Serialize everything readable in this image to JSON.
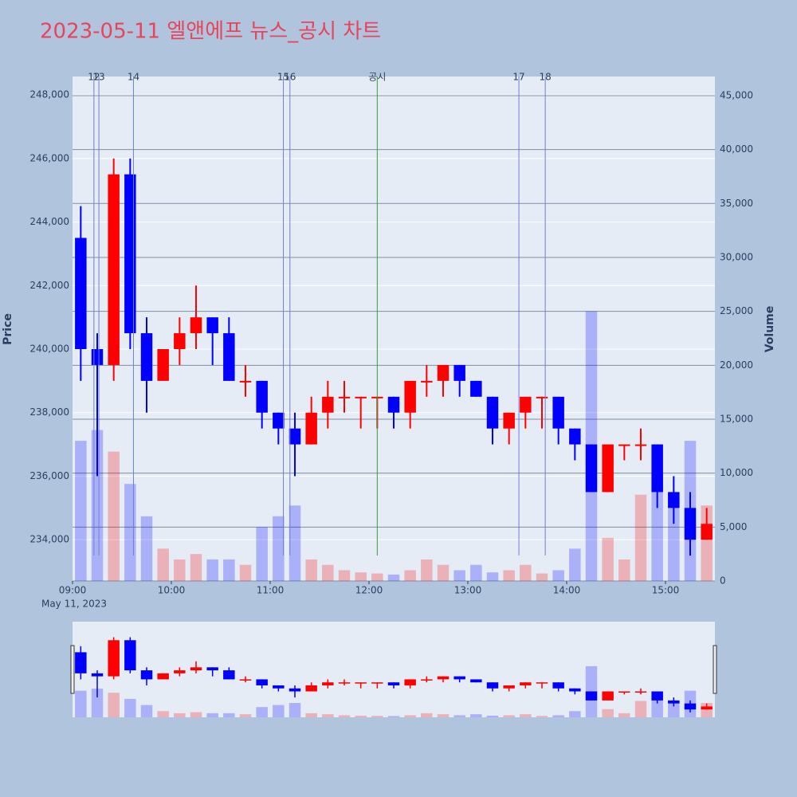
{
  "chart_data": {
    "type": "candlestick",
    "title": "2023-05-11 엘앤에프 뉴스_공시 차트",
    "title_color": "#e8455a",
    "y_label": "Price",
    "y2_label": "Volume",
    "x_date_label": "May 11, 2023",
    "x": [
      "09:00",
      "09:10",
      "09:20",
      "09:30",
      "09:40",
      "09:50",
      "10:00",
      "10:10",
      "10:20",
      "10:30",
      "10:40",
      "10:50",
      "11:00",
      "11:10",
      "11:20",
      "11:30",
      "11:40",
      "11:50",
      "12:00",
      "12:10",
      "12:20",
      "12:30",
      "12:40",
      "12:50",
      "13:00",
      "13:10",
      "13:20",
      "13:30",
      "13:40",
      "13:50",
      "14:00",
      "14:10",
      "14:20",
      "14:30",
      "14:40",
      "14:50",
      "15:00",
      "15:10",
      "15:20"
    ],
    "open": [
      243500,
      240000,
      239500,
      245500,
      240500,
      239000,
      240000,
      240500,
      241000,
      240500,
      239000,
      239000,
      238000,
      237500,
      237000,
      238000,
      238500,
      238500,
      238500,
      238500,
      238000,
      239000,
      239000,
      239500,
      239000,
      238500,
      237500,
      238000,
      238500,
      238500,
      237500,
      237000,
      235500,
      237000,
      237000,
      237000,
      235500,
      235000,
      234000
    ],
    "high": [
      244500,
      240500,
      246000,
      246000,
      241000,
      240000,
      241000,
      242000,
      241000,
      241000,
      239500,
      239000,
      238000,
      238000,
      238500,
      239000,
      239000,
      238500,
      238500,
      238500,
      239000,
      239500,
      239500,
      239500,
      239000,
      238500,
      238000,
      238500,
      238500,
      238500,
      237500,
      237000,
      237000,
      237000,
      237500,
      237000,
      236000,
      235500,
      235000
    ],
    "low": [
      239000,
      236000,
      239000,
      240000,
      238000,
      239000,
      239500,
      240000,
      239500,
      239000,
      238500,
      237500,
      237000,
      236000,
      237000,
      237500,
      238000,
      237500,
      237500,
      237500,
      237500,
      238500,
      238500,
      238500,
      238500,
      237000,
      237000,
      237500,
      237500,
      237000,
      236500,
      235500,
      235500,
      236500,
      236500,
      235000,
      234500,
      233500,
      234000
    ],
    "close": [
      240000,
      239500,
      245500,
      240500,
      239000,
      240000,
      240500,
      241000,
      240500,
      239000,
      239000,
      238000,
      237500,
      237000,
      238000,
      238500,
      238500,
      238500,
      238500,
      238000,
      239000,
      239000,
      239500,
      239000,
      238500,
      237500,
      238000,
      238500,
      238500,
      237500,
      237000,
      235500,
      237000,
      237000,
      237000,
      235500,
      235000,
      234000,
      234500
    ],
    "volume": [
      13000,
      14000,
      12000,
      9000,
      6000,
      3000,
      2000,
      2500,
      2000,
      2000,
      1500,
      5000,
      6000,
      7000,
      2000,
      1500,
      1000,
      800,
      700,
      600,
      1000,
      2000,
      1500,
      1000,
      1500,
      800,
      1000,
      1500,
      700,
      1000,
      3000,
      25000,
      4000,
      2000,
      8000,
      10000,
      8000,
      13000,
      7000
    ],
    "up_color": "#ff0000",
    "down_color": "#0000ff",
    "xlim": [
      "09:00",
      "15:30"
    ],
    "xticks": [
      "09:00",
      "10:00",
      "11:00",
      "12:00",
      "13:00",
      "14:00",
      "15:00"
    ],
    "ylim": [
      232700,
      248580
    ],
    "yticks": [
      {
        "value": 234000,
        "label": "234,000"
      },
      {
        "value": 236000,
        "label": "236,000"
      },
      {
        "value": 238000,
        "label": "238,000"
      },
      {
        "value": 240000,
        "label": "240,000"
      },
      {
        "value": 242000,
        "label": "242,000"
      },
      {
        "value": 244000,
        "label": "244,000"
      },
      {
        "value": 246000,
        "label": "246,000"
      },
      {
        "value": 248000,
        "label": "248,000"
      }
    ],
    "y2lim": [
      0,
      46770
    ],
    "y2ticks": [
      0,
      {
        "value": 5000,
        "label": "5,000"
      },
      {
        "value": 10000,
        "label": "10,000"
      },
      {
        "value": 15000,
        "label": "15,000"
      },
      {
        "value": 20000,
        "label": "20,000"
      },
      {
        "value": 25000,
        "label": "25,000"
      },
      {
        "value": 30000,
        "label": "30,000"
      },
      {
        "value": 35000,
        "label": "35,000"
      },
      {
        "value": 40000,
        "label": "40,000"
      },
      {
        "value": 45000,
        "label": "45,000"
      }
    ],
    "events": [
      {
        "label": "12",
        "x": "09:13",
        "color": "#6f7fd8"
      },
      {
        "label": "13",
        "x": "09:16",
        "color": "#6f7fd8"
      },
      {
        "label": "14",
        "x": "09:37",
        "color": "#6f7fd8"
      },
      {
        "label": "15",
        "x": "11:08",
        "color": "#6f7fd8"
      },
      {
        "label": "16",
        "x": "11:12",
        "color": "#6f7fd8"
      },
      {
        "label": "공시",
        "x": "12:05",
        "color": "#3a9a3a"
      },
      {
        "label": "17",
        "x": "13:31",
        "color": "#6f7fd8"
      },
      {
        "label": "18",
        "x": "13:47",
        "color": "#6f7fd8"
      }
    ],
    "grid": true
  }
}
